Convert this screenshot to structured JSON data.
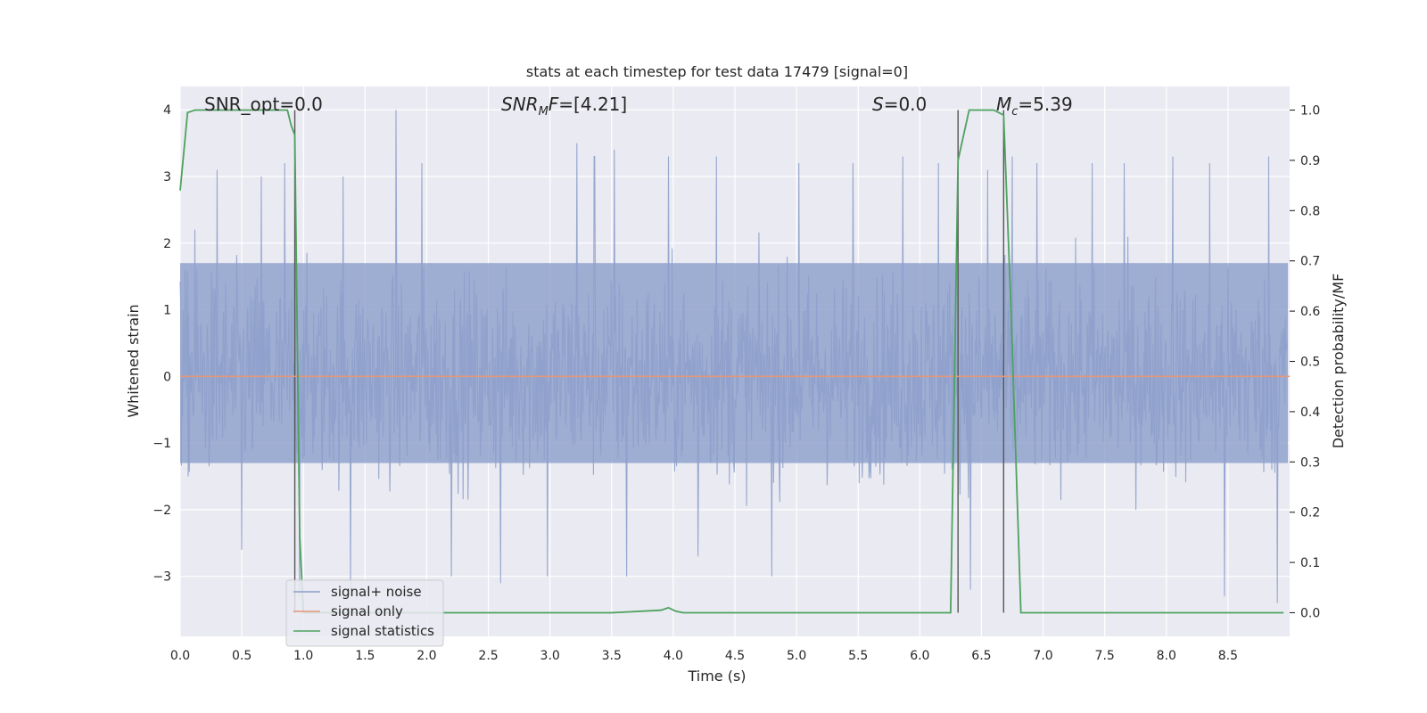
{
  "chart_data": {
    "type": "line",
    "title": "stats at each timestep for test data 17479 [signal=0]",
    "xlabel": "Time (s)",
    "ylabel": "Whitened strain",
    "ylabel_right": "Detection probability/MF",
    "xlim": [
      0.0,
      9.0
    ],
    "ylim": [
      -3.9,
      4.35
    ],
    "ylim_right": [
      -0.047,
      1.047
    ],
    "xticks": [
      0.0,
      0.5,
      1.0,
      1.5,
      2.0,
      2.5,
      3.0,
      3.5,
      4.0,
      4.5,
      5.0,
      5.5,
      6.0,
      6.5,
      7.0,
      7.5,
      8.0,
      8.5
    ],
    "xtick_labels": [
      "0.0",
      "0.5",
      "1.0",
      "1.5",
      "2.0",
      "2.5",
      "3.0",
      "3.5",
      "4.0",
      "4.5",
      "5.0",
      "5.5",
      "6.0",
      "6.5",
      "7.0",
      "7.5",
      "8.0",
      "8.5"
    ],
    "yticks": [
      -3,
      -2,
      -1,
      0,
      1,
      2,
      3,
      4
    ],
    "ytick_labels": [
      "−3",
      "−2",
      "−1",
      "0",
      "1",
      "2",
      "3",
      "4"
    ],
    "yticks_right": [
      0.0,
      0.1,
      0.2,
      0.3,
      0.4,
      0.5,
      0.6,
      0.7,
      0.8,
      0.9,
      1.0
    ],
    "ytick_labels_right": [
      "0.0",
      "0.1",
      "0.2",
      "0.3",
      "0.4",
      "0.5",
      "0.6",
      "0.7",
      "0.8",
      "0.9",
      "1.0"
    ],
    "grid": true,
    "legend_position": "lower-left",
    "annotations": {
      "snr_opt": "SNR_opt=0.0",
      "snr_mf": "=[4.21]",
      "s": "=0.0",
      "mc": "=5.39"
    },
    "vertical_lines_x": [
      0.93,
      6.31,
      6.68
    ],
    "series": [
      {
        "name": "signal+ noise",
        "color": "#8da0cb",
        "kind": "noise",
        "description_values": {
          "min": -3.5,
          "max": 4.0,
          "typical_band": [
            -1.3,
            1.7
          ]
        },
        "peaks": [
          [
            0.12,
            2.2
          ],
          [
            0.3,
            3.1
          ],
          [
            0.5,
            -2.6
          ],
          [
            0.66,
            3.0
          ],
          [
            0.85,
            3.2
          ],
          [
            0.97,
            -3.3
          ],
          [
            1.32,
            3.0
          ],
          [
            1.38,
            -3.2
          ],
          [
            1.75,
            4.0
          ],
          [
            1.96,
            3.2
          ],
          [
            2.2,
            -3.0
          ],
          [
            2.6,
            -3.1
          ],
          [
            2.98,
            -3.0
          ],
          [
            3.22,
            3.5
          ],
          [
            3.36,
            3.3
          ],
          [
            3.52,
            3.4
          ],
          [
            3.62,
            -3.0
          ],
          [
            3.96,
            3.3
          ],
          [
            4.2,
            -2.7
          ],
          [
            4.35,
            3.3
          ],
          [
            4.8,
            -3.0
          ],
          [
            5.02,
            3.2
          ],
          [
            5.46,
            3.2
          ],
          [
            5.86,
            3.3
          ],
          [
            6.15,
            3.2
          ],
          [
            6.41,
            -3.2
          ],
          [
            6.55,
            3.1
          ],
          [
            6.75,
            3.3
          ],
          [
            6.95,
            3.2
          ],
          [
            7.4,
            3.2
          ],
          [
            7.66,
            3.2
          ],
          [
            8.05,
            3.3
          ],
          [
            8.35,
            3.2
          ],
          [
            8.47,
            -3.3
          ],
          [
            8.83,
            3.3
          ],
          [
            8.9,
            -3.4
          ]
        ]
      },
      {
        "name": "signal only",
        "color": "#e5967a",
        "x": [
          0.0,
          9.0
        ],
        "y": [
          0.0,
          0.0
        ]
      },
      {
        "name": "signal statistics",
        "color": "#4ea25e",
        "axis": "right",
        "x": [
          0.0,
          0.06,
          0.12,
          0.3,
          0.6,
          0.87,
          0.9,
          0.93,
          0.97,
          1.0,
          1.5,
          2.5,
          3.5,
          3.9,
          3.96,
          4.02,
          4.08,
          5.0,
          6.0,
          6.25,
          6.31,
          6.4,
          6.6,
          6.68,
          6.74,
          6.82,
          6.9,
          7.5,
          8.5,
          8.95
        ],
        "y": [
          0.84,
          0.995,
          1.0,
          1.0,
          1.0,
          1.0,
          0.97,
          0.95,
          0.15,
          0.0,
          0.0,
          0.0,
          0.0,
          0.005,
          0.01,
          0.003,
          0.0,
          0.0,
          0.0,
          0.0,
          0.9,
          1.0,
          1.0,
          0.99,
          0.6,
          0.0,
          0.0,
          0.0,
          0.0,
          0.0
        ]
      }
    ]
  }
}
